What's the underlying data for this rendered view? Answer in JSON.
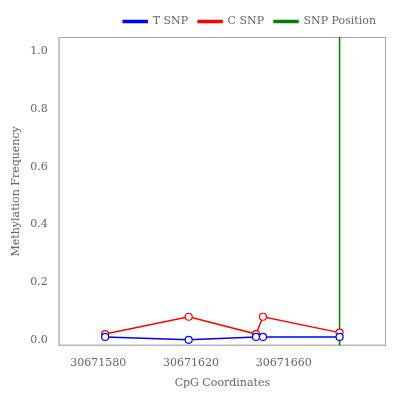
{
  "chart_data": {
    "type": "line",
    "xlabel": "CpG Coordinates",
    "ylabel": "Methylation Frequency",
    "x": [
      30671583,
      30671619,
      30671648,
      30671651,
      30671684
    ],
    "series": [
      {
        "name": "T SNP",
        "color": "blue",
        "marker": "circle",
        "values": [
          0.01,
          0.0,
          0.01,
          0.01,
          0.01
        ]
      },
      {
        "name": "C SNP",
        "color": "red",
        "marker": "circle",
        "values": [
          0.02,
          0.08,
          0.02,
          0.08,
          0.025
        ]
      }
    ],
    "vlines": [
      {
        "x": 30671684,
        "name": "SNP Position",
        "color": "green"
      }
    ],
    "xlim": [
      30671563,
      30671704
    ],
    "xticks": [
      30671580,
      30671620,
      30671660
    ],
    "ylim": [
      -0.02,
      1.05
    ],
    "yticks": [
      {
        "value": 0.0,
        "label": "0.0"
      },
      0.2,
      0.4,
      0.6,
      0.8,
      {
        "value": 1.0,
        "label": "1.0"
      }
    ],
    "grid": false,
    "legend": "upper right"
  }
}
